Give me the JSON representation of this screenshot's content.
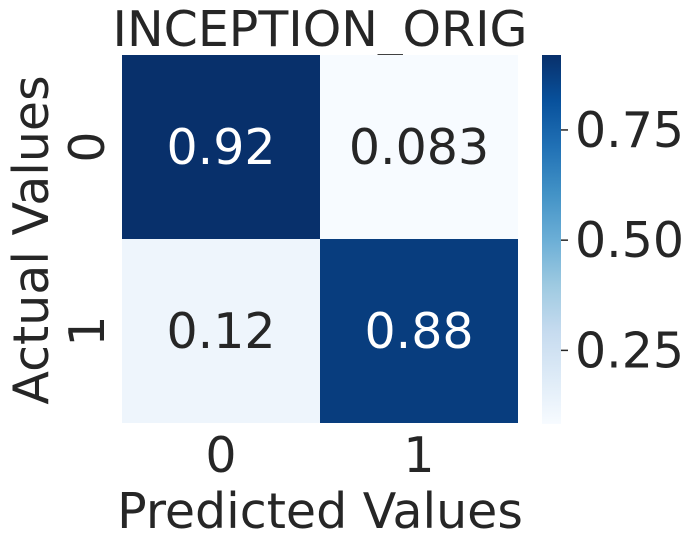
{
  "chart_data": {
    "type": "heatmap",
    "title": "INCEPTION_ORIG",
    "xlabel": "Predicted Values",
    "ylabel": "Actual Values",
    "x_categories": [
      "0",
      "1"
    ],
    "y_categories": [
      "0",
      "1"
    ],
    "values": [
      [
        0.92,
        0.083
      ],
      [
        0.12,
        0.88
      ]
    ],
    "cell_labels": [
      [
        "0.92",
        "0.083"
      ],
      [
        "0.12",
        "0.88"
      ]
    ],
    "colormap": "Blues",
    "colorbar": {
      "range": [
        0.083,
        0.92
      ],
      "ticks": [
        0.25,
        0.5,
        0.75
      ],
      "tick_labels": [
        "0.25",
        "0.50",
        "0.75"
      ]
    },
    "grid": false
  }
}
